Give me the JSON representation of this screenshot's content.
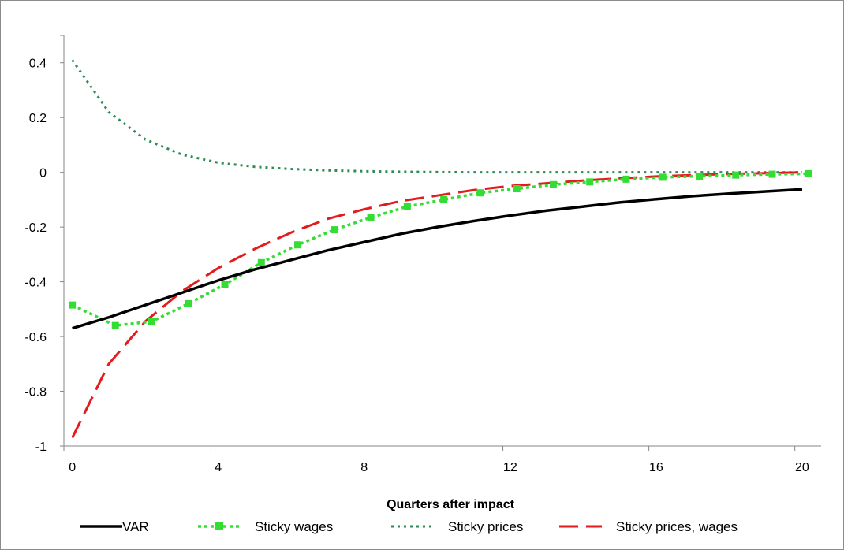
{
  "chart_data": {
    "type": "line",
    "title": "",
    "xlabel": "Quarters after impact",
    "ylabel": "",
    "xlim": [
      0,
      20
    ],
    "ylim": [
      -1,
      0.5
    ],
    "x_ticks": [
      "0",
      "4",
      "8",
      "12",
      "16",
      "20"
    ],
    "y_ticks": [
      "0.4",
      "0.2",
      "0",
      "-0.2",
      "-0.4",
      "-0.6",
      "-0.8",
      "-1"
    ],
    "y_tick_values": [
      0.4,
      0.2,
      0,
      -0.2,
      -0.4,
      -0.6,
      -0.8,
      -1
    ],
    "grid": false,
    "legend_position": "bottom",
    "x": [
      0,
      1,
      2,
      3,
      4,
      5,
      6,
      7,
      8,
      9,
      10,
      11,
      12,
      13,
      14,
      15,
      16,
      17,
      18,
      19,
      20
    ],
    "series": [
      {
        "name": "VAR",
        "color": "#000000",
        "style": "solid",
        "values": [
          -0.57,
          -0.53,
          -0.485,
          -0.44,
          -0.395,
          -0.355,
          -0.32,
          -0.285,
          -0.255,
          -0.225,
          -0.2,
          -0.178,
          -0.158,
          -0.14,
          -0.125,
          -0.11,
          -0.098,
          -0.087,
          -0.078,
          -0.07,
          -0.062
        ]
      },
      {
        "name": "Sticky wages",
        "color": "#33dd33",
        "style": "dotted-marker",
        "values": [
          -0.485,
          -0.56,
          -0.545,
          -0.48,
          -0.41,
          -0.33,
          -0.265,
          -0.21,
          -0.165,
          -0.125,
          -0.1,
          -0.075,
          -0.06,
          -0.045,
          -0.035,
          -0.025,
          -0.018,
          -0.014,
          -0.01,
          -0.007,
          -0.005
        ]
      },
      {
        "name": "Sticky prices",
        "color": "#2e8b57",
        "style": "dotted",
        "values": [
          0.41,
          0.22,
          0.12,
          0.065,
          0.035,
          0.02,
          0.012,
          0.007,
          0.004,
          0.002,
          0.001,
          0.0,
          0.0,
          0.0,
          0.0,
          0.0,
          0.0,
          0.0,
          0.0,
          0.0,
          0.0
        ]
      },
      {
        "name": "Sticky prices, wages",
        "color": "#e41a1c",
        "style": "dashed",
        "values": [
          -0.97,
          -0.7,
          -0.545,
          -0.435,
          -0.35,
          -0.28,
          -0.22,
          -0.17,
          -0.135,
          -0.105,
          -0.085,
          -0.065,
          -0.05,
          -0.04,
          -0.03,
          -0.022,
          -0.015,
          -0.01,
          -0.006,
          -0.003,
          0.0
        ]
      }
    ]
  }
}
